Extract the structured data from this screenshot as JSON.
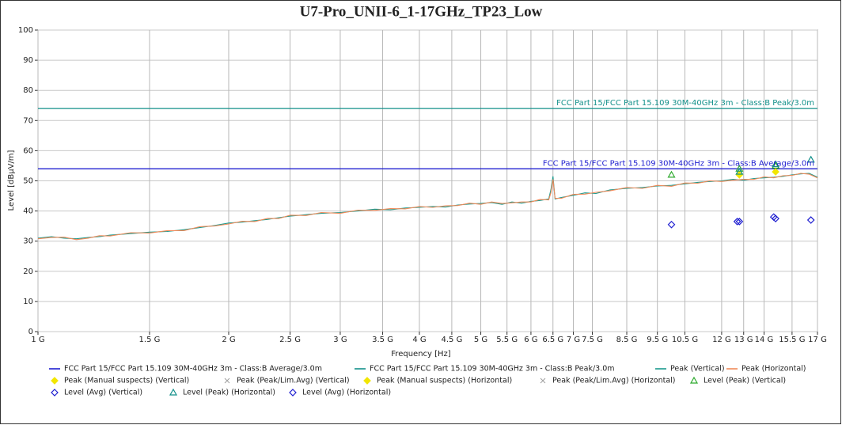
{
  "chart_data": {
    "type": "line",
    "title": "U7-Pro_UNII-6_1-17GHz_TP23_Low",
    "xlabel": "Frequency [Hz]",
    "ylabel": "Level [dBµV/m]",
    "xscale": "log",
    "grid": true,
    "xlim": [
      1000000000.0,
      17000000000.0
    ],
    "ylim": [
      0,
      100
    ],
    "yticks": [
      0,
      10,
      20,
      30,
      40,
      50,
      60,
      70,
      80,
      90,
      100
    ],
    "xticks": [
      {
        "value": 1000000000.0,
        "label": "1 G"
      },
      {
        "value": 1500000000.0,
        "label": "1.5 G"
      },
      {
        "value": 2000000000.0,
        "label": "2 G"
      },
      {
        "value": 2500000000.0,
        "label": "2.5 G"
      },
      {
        "value": 3000000000.0,
        "label": "3 G"
      },
      {
        "value": 3500000000.0,
        "label": "3.5 G"
      },
      {
        "value": 4000000000.0,
        "label": "4 G"
      },
      {
        "value": 4500000000.0,
        "label": "4.5 G"
      },
      {
        "value": 5000000000.0,
        "label": "5 G"
      },
      {
        "value": 5500000000.0,
        "label": "5.5 G"
      },
      {
        "value": 6000000000.0,
        "label": "6 G"
      },
      {
        "value": 6500000000.0,
        "label": "6.5 G"
      },
      {
        "value": 7000000000.0,
        "label": "7 G"
      },
      {
        "value": 7500000000.0,
        "label": "7.5 G"
      },
      {
        "value": 8500000000.0,
        "label": "8.5 G"
      },
      {
        "value": 9500000000.0,
        "label": "9.5 G"
      },
      {
        "value": 10500000000.0,
        "label": "10.5 G"
      },
      {
        "value": 12000000000.0,
        "label": "12 G"
      },
      {
        "value": 13000000000.0,
        "label": "13 G"
      },
      {
        "value": 14000000000.0,
        "label": "14 G"
      },
      {
        "value": 15500000000.0,
        "label": "15.5 G"
      },
      {
        "value": 17000000000.0,
        "label": "17 G"
      }
    ],
    "annotations": [
      "FCC Part 15/FCC Part 15.109 30M-40GHz 3m - Class:B Average/3.0m",
      "FCC Part 15/FCC Part 15.109 30M-40GHz 3m - Class:B Peak/3.0m"
    ],
    "series": [
      {
        "name": "FCC Part 15/FCC Part 15.109 30M-40GHz 3m - Class:B Average/3.0m",
        "color": "#1f1fd0",
        "style": "line",
        "x": [
          1000000000.0,
          17000000000.0
        ],
        "values": [
          54,
          54
        ]
      },
      {
        "name": "FCC Part 15/FCC Part 15.109 30M-40GHz 3m - Class:B Peak/3.0m",
        "color": "#13908a",
        "style": "line",
        "x": [
          1000000000.0,
          17000000000.0
        ],
        "values": [
          74,
          74
        ]
      },
      {
        "name": "Peak (Vertical)",
        "color": "#1a9a8e",
        "style": "line",
        "x": [
          1000000000.0,
          1050000000.0,
          1100000000.0,
          1150000000.0,
          1200000000.0,
          1250000000.0,
          1300000000.0,
          1400000000.0,
          1500000000.0,
          1600000000.0,
          1700000000.0,
          1800000000.0,
          1900000000.0,
          2000000000.0,
          2100000000.0,
          2200000000.0,
          2300000000.0,
          2400000000.0,
          2500000000.0,
          2650000000.0,
          2800000000.0,
          3000000000.0,
          3200000000.0,
          3400000000.0,
          3600000000.0,
          3800000000.0,
          4000000000.0,
          4200000000.0,
          4400000000.0,
          4600000000.0,
          4800000000.0,
          5000000000.0,
          5200000000.0,
          5400000000.0,
          5600000000.0,
          5800000000.0,
          6000000000.0,
          6200000000.0,
          6400000000.0,
          6450000000.0,
          6500000000.0,
          6550000000.0,
          6700000000.0,
          7000000000.0,
          7300000000.0,
          7600000000.0,
          8000000000.0,
          8500000000.0,
          9000000000.0,
          9500000000.0,
          10000000000.0,
          10500000000.0,
          11000000000.0,
          11500000000.0,
          12000000000.0,
          12500000000.0,
          13000000000.0,
          13500000000.0,
          14000000000.0,
          14500000000.0,
          15000000000.0,
          15500000000.0,
          16000000000.0,
          16500000000.0,
          17000000000.0
        ],
        "values": [
          31,
          31.5,
          31,
          30.8,
          31.2,
          31.5,
          32,
          32.5,
          33,
          33.2,
          33.8,
          34.5,
          35.2,
          36,
          36.3,
          36.8,
          37.2,
          37.8,
          38.3,
          38.8,
          39.2,
          39.5,
          40,
          40.6,
          40.4,
          41,
          41.2,
          41.5,
          41.3,
          42,
          42.3,
          42.5,
          42.8,
          42.2,
          43,
          42.6,
          43.2,
          43.5,
          44,
          47,
          51.5,
          44,
          44.5,
          45.2,
          46,
          45.8,
          47,
          47.5,
          47.8,
          48.3,
          48.5,
          49,
          49.5,
          49.8,
          50,
          50.5,
          50.2,
          50.8,
          51,
          51.2,
          51.5,
          52,
          52.3,
          52.5,
          51.2
        ]
      },
      {
        "name": "Peak (Horizontal)",
        "color": "#f08a5a",
        "style": "line",
        "x": [
          1000000000.0,
          1050000000.0,
          1100000000.0,
          1150000000.0,
          1200000000.0,
          1250000000.0,
          1300000000.0,
          1400000000.0,
          1500000000.0,
          1600000000.0,
          1700000000.0,
          1800000000.0,
          1900000000.0,
          2000000000.0,
          2100000000.0,
          2200000000.0,
          2300000000.0,
          2400000000.0,
          2500000000.0,
          2650000000.0,
          2800000000.0,
          3000000000.0,
          3200000000.0,
          3400000000.0,
          3600000000.0,
          3800000000.0,
          4000000000.0,
          4200000000.0,
          4400000000.0,
          4600000000.0,
          4800000000.0,
          5000000000.0,
          5200000000.0,
          5400000000.0,
          5600000000.0,
          5800000000.0,
          6000000000.0,
          6200000000.0,
          6400000000.0,
          6450000000.0,
          6500000000.0,
          6550000000.0,
          6700000000.0,
          7000000000.0,
          7300000000.0,
          7600000000.0,
          8000000000.0,
          8500000000.0,
          9000000000.0,
          9500000000.0,
          10000000000.0,
          10500000000.0,
          11000000000.0,
          11500000000.0,
          12000000000.0,
          12500000000.0,
          13000000000.0,
          13500000000.0,
          14000000000.0,
          14500000000.0,
          15000000000.0,
          15500000000.0,
          16000000000.0,
          16500000000.0,
          17000000000.0
        ],
        "values": [
          30.8,
          31.2,
          31.3,
          30.5,
          31,
          31.8,
          31.7,
          32.8,
          32.7,
          33.5,
          33.5,
          34.8,
          35,
          35.7,
          36.6,
          36.5,
          37.5,
          37.5,
          38.6,
          38.5,
          39.5,
          39.2,
          40.3,
          40.2,
          40.8,
          40.7,
          41.5,
          41.2,
          41.7,
          41.8,
          42.6,
          42.2,
          43,
          42.5,
          42.7,
          43,
          43,
          43.8,
          43.7,
          46,
          50.5,
          44.2,
          44.2,
          45.5,
          45.6,
          46.2,
          46.7,
          47.8,
          47.5,
          48.5,
          48.2,
          49.3,
          49.2,
          50,
          49.8,
          50.2,
          50.5,
          50.5,
          51.3,
          51,
          51.7,
          51.8,
          52.5,
          52.2,
          51
        ]
      },
      {
        "name": "Peak (Manual suspects) (Vertical)",
        "color": "#f2e600",
        "style": "marker",
        "marker": "diamond",
        "x": [
          12800000000.0
        ],
        "values": [
          52
        ]
      },
      {
        "name": "Peak (Peak/Lim.Avg) (Vertical)",
        "color": "#a0a0a0",
        "style": "marker",
        "marker": "x",
        "x": [],
        "values": []
      },
      {
        "name": "Peak (Manual suspects) (Horizontal)",
        "color": "#f2e600",
        "style": "marker",
        "marker": "diamond",
        "x": [
          14600000000.0
        ],
        "values": [
          53
        ]
      },
      {
        "name": "Peak (Peak/Lim.Avg) (Horizontal)",
        "color": "#a0a0a0",
        "style": "marker",
        "marker": "x",
        "x": [],
        "values": []
      },
      {
        "name": "Level (Peak) (Vertical)",
        "color": "#2eaa2e",
        "style": "marker",
        "marker": "triangle",
        "x": [
          10000000000.0,
          12800000000.0,
          14600000000.0
        ],
        "values": [
          52,
          54,
          55
        ]
      },
      {
        "name": "Level (Avg) (Vertical)",
        "color": "#1f1fd0",
        "style": "marker",
        "marker": "diamond",
        "x": [
          10000000000.0,
          12700000000.0,
          14500000000.0
        ],
        "values": [
          35.5,
          36.5,
          38
        ]
      },
      {
        "name": "Level (Peak) (Horizontal)",
        "color": "#13908a",
        "style": "marker",
        "marker": "triangle",
        "x": [
          12800000000.0,
          14600000000.0,
          16600000000.0
        ],
        "values": [
          53,
          55.5,
          57
        ]
      },
      {
        "name": "Level (Avg) (Horizontal)",
        "color": "#1f1fd0",
        "style": "marker",
        "marker": "diamond",
        "x": [
          12800000000.0,
          14600000000.0,
          16600000000.0
        ],
        "values": [
          36.5,
          37.5,
          37
        ]
      }
    ]
  }
}
